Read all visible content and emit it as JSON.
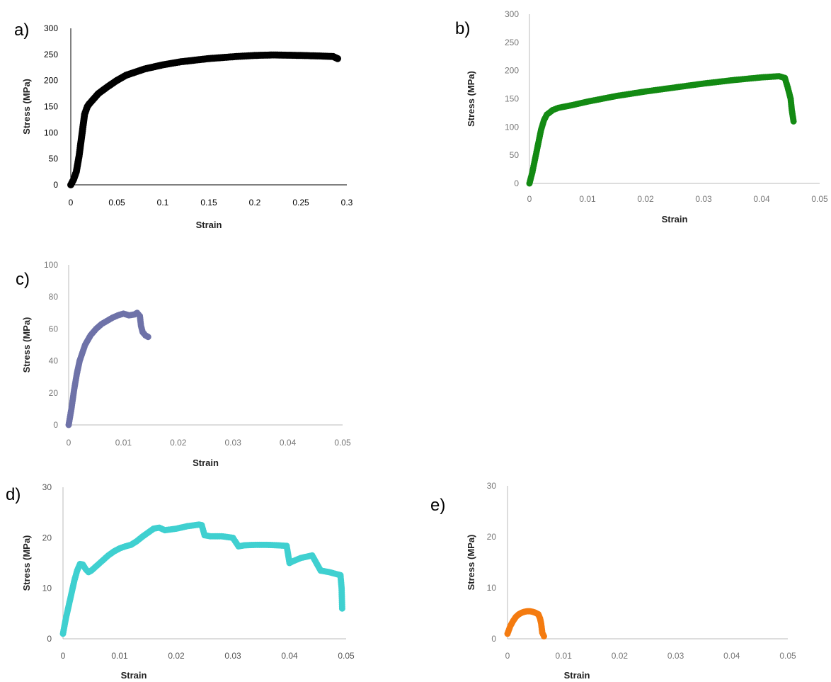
{
  "chart_data": [
    {
      "panel": "a)",
      "type": "scatter",
      "xlabel": "Strain",
      "ylabel": "Stress (MPa)",
      "xlim": [
        0,
        0.3
      ],
      "ylim": [
        0,
        300
      ],
      "xticks": [
        "0",
        "0.05",
        "0.1",
        "0.15",
        "0.2",
        "0.25",
        "0.3"
      ],
      "yticks": [
        "0",
        "50",
        "100",
        "150",
        "200",
        "250",
        "300"
      ],
      "color": "#000000",
      "series": [
        {
          "x": [
            0,
            0.003,
            0.006,
            0.009,
            0.012,
            0.015,
            0.018,
            0.02,
            0.025,
            0.03,
            0.04,
            0.05,
            0.06,
            0.08,
            0.1,
            0.12,
            0.15,
            0.18,
            0.2,
            0.22,
            0.25,
            0.27,
            0.285,
            0.29
          ],
          "y": [
            0,
            10,
            25,
            55,
            95,
            135,
            150,
            155,
            165,
            175,
            188,
            200,
            210,
            222,
            230,
            236,
            242,
            246,
            248,
            249,
            248,
            247,
            246,
            242
          ]
        }
      ]
    },
    {
      "panel": "b)",
      "type": "scatter",
      "xlabel": "Strain",
      "ylabel": "Stress (MPa)",
      "xlim": [
        0,
        0.05
      ],
      "ylim": [
        0,
        300
      ],
      "xticks": [
        "0",
        "0.01",
        "0.02",
        "0.03",
        "0.04",
        "0.05"
      ],
      "yticks": [
        "0",
        "50",
        "100",
        "150",
        "200",
        "250",
        "300"
      ],
      "color": "#138a13",
      "series": [
        {
          "x": [
            0,
            0.0005,
            0.001,
            0.0015,
            0.002,
            0.0025,
            0.003,
            0.004,
            0.005,
            0.007,
            0.01,
            0.015,
            0.02,
            0.025,
            0.03,
            0.035,
            0.04,
            0.043,
            0.044,
            0.0445,
            0.045,
            0.0452,
            0.0455
          ],
          "y": [
            0,
            20,
            45,
            70,
            95,
            112,
            122,
            130,
            134,
            138,
            145,
            155,
            163,
            170,
            177,
            183,
            188,
            190,
            187,
            170,
            150,
            130,
            110
          ]
        }
      ]
    },
    {
      "panel": "c)",
      "type": "scatter",
      "xlabel": "Strain",
      "ylabel": "Stress (MPa)",
      "xlim": [
        0,
        0.05
      ],
      "ylim": [
        0,
        100
      ],
      "xticks": [
        "0",
        "0.01",
        "0.02",
        "0.03",
        "0.04",
        "0.05"
      ],
      "yticks": [
        "0",
        "20",
        "40",
        "60",
        "80",
        "100"
      ],
      "color": "#6e72a8",
      "series": [
        {
          "x": [
            0,
            0.0005,
            0.001,
            0.0015,
            0.002,
            0.003,
            0.004,
            0.005,
            0.006,
            0.007,
            0.008,
            0.009,
            0.01,
            0.011,
            0.012,
            0.0125,
            0.013,
            0.0132,
            0.0135,
            0.014,
            0.0145
          ],
          "y": [
            0,
            10,
            22,
            32,
            40,
            50,
            56,
            60,
            63,
            65,
            67,
            68.5,
            69.5,
            68.5,
            69,
            70,
            68,
            62,
            58,
            56,
            55
          ]
        }
      ]
    },
    {
      "panel": "d)",
      "type": "scatter",
      "xlabel": "Strain",
      "ylabel": "Stress (MPa)",
      "xlim": [
        0,
        0.05
      ],
      "ylim": [
        0,
        30
      ],
      "xticks": [
        "0",
        "0.01",
        "0.02",
        "0.03",
        "0.04",
        "0.05"
      ],
      "yticks": [
        "0",
        "10",
        "20",
        "30"
      ],
      "color": "#3fd0d0",
      "series": [
        {
          "x": [
            0,
            0.0005,
            0.001,
            0.0015,
            0.002,
            0.0025,
            0.003,
            0.0035,
            0.004,
            0.0045,
            0.005,
            0.006,
            0.007,
            0.008,
            0.009,
            0.01,
            0.011,
            0.012,
            0.013,
            0.014,
            0.015,
            0.016,
            0.017,
            0.018,
            0.02,
            0.022,
            0.024,
            0.0245,
            0.025,
            0.026,
            0.028,
            0.03,
            0.031,
            0.032,
            0.034,
            0.036,
            0.038,
            0.0395,
            0.04,
            0.0405,
            0.042,
            0.044,
            0.0445,
            0.045,
            0.0455,
            0.047,
            0.048,
            0.049,
            0.0492,
            0.0493
          ],
          "y": [
            1,
            4,
            6.5,
            9,
            11.5,
            13.5,
            14.8,
            14.7,
            13.8,
            13.2,
            13.5,
            14.5,
            15.5,
            16.5,
            17.3,
            17.9,
            18.3,
            18.6,
            19.3,
            20.2,
            21,
            21.8,
            22,
            21.5,
            21.8,
            22.3,
            22.6,
            22.5,
            20.5,
            20.3,
            20.3,
            20,
            18.3,
            18.5,
            18.6,
            18.6,
            18.5,
            18.4,
            15,
            15.3,
            16,
            16.5,
            15.5,
            14.5,
            13.5,
            13.2,
            12.9,
            12.6,
            10,
            6
          ]
        }
      ]
    },
    {
      "panel": "e)",
      "type": "scatter",
      "xlabel": "Strain",
      "ylabel": "Stress (MPa)",
      "xlim": [
        0,
        0.05
      ],
      "ylim": [
        0,
        30
      ],
      "xticks": [
        "0",
        "0.01",
        "0.02",
        "0.03",
        "0.04",
        "0.05"
      ],
      "yticks": [
        "0",
        "10",
        "20",
        "30"
      ],
      "color": "#f47b10",
      "series": [
        {
          "x": [
            0,
            0.0005,
            0.001,
            0.0015,
            0.002,
            0.0025,
            0.003,
            0.0035,
            0.004,
            0.0045,
            0.005,
            0.0055,
            0.0058,
            0.006,
            0.0062,
            0.0065
          ],
          "y": [
            1,
            2.5,
            3.5,
            4.3,
            4.8,
            5.1,
            5.3,
            5.4,
            5.4,
            5.3,
            5.1,
            4.8,
            4.0,
            3.0,
            1.2,
            0.5
          ]
        }
      ]
    }
  ]
}
